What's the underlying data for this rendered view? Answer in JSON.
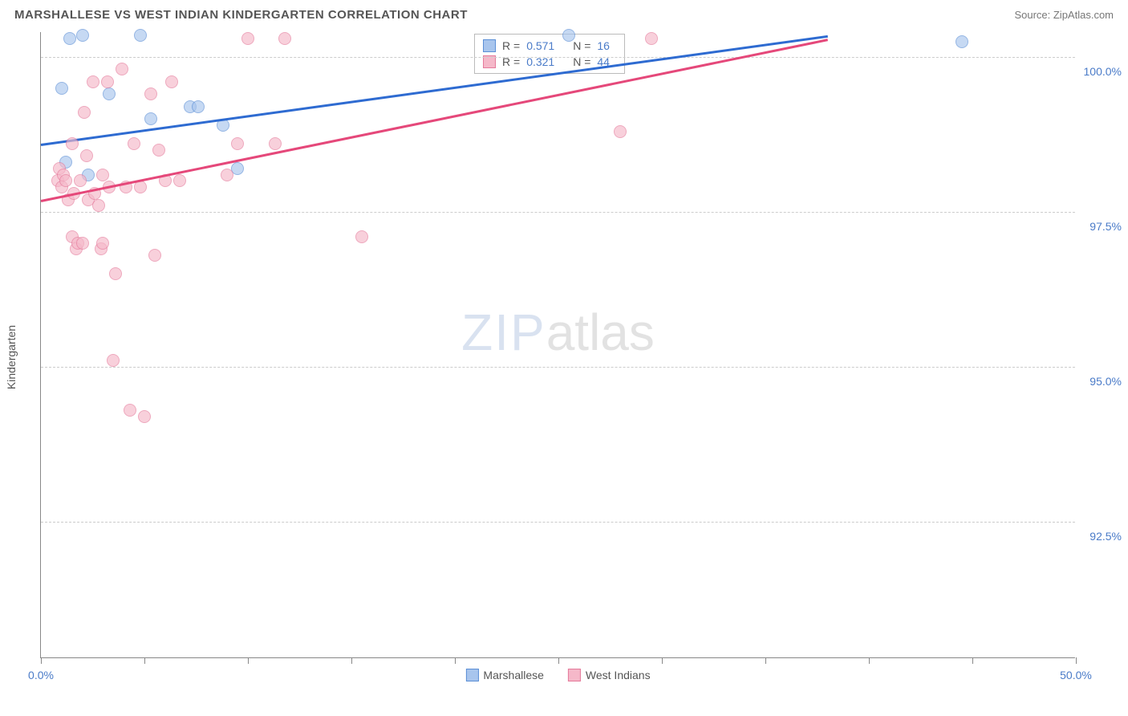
{
  "header": {
    "title": "MARSHALLESE VS WEST INDIAN KINDERGARTENCORRELATION CHART",
    "title_fixed": "MARSHALLESE VS WEST INDIAN KINDERGARTEN CORRELATION CHART",
    "source": "Source: ZipAtlas.com"
  },
  "chart": {
    "type": "scatter",
    "ylabel": "Kindergarten",
    "xlim": [
      0,
      50
    ],
    "ylim": [
      90.3,
      100.4
    ],
    "x_ticks": [
      0,
      5,
      10,
      15,
      20,
      25,
      30,
      35,
      40,
      45,
      50
    ],
    "x_tick_labels": {
      "0": "0.0%",
      "50": "50.0%"
    },
    "y_grid": [
      92.5,
      95.0,
      97.5,
      100.0
    ],
    "y_tick_labels": [
      "92.5%",
      "95.0%",
      "97.5%",
      "100.0%"
    ],
    "background_color": "#ffffff",
    "grid_color": "#cccccc",
    "axis_color": "#888888",
    "tick_label_color": "#4a7bc8",
    "marker_radius": 8,
    "marker_opacity": 0.65,
    "watermark": {
      "part1": "ZIP",
      "part2": "atlas"
    },
    "series": [
      {
        "name": "Marshallese",
        "fill_color": "#a8c5ed",
        "stroke_color": "#5b8fd6",
        "line_color": "#2e6bd1",
        "R": "0.571",
        "N": "16",
        "trend": {
          "x1": 0,
          "y1": 98.6,
          "x2": 38,
          "y2": 100.35
        },
        "points": [
          [
            1.0,
            99.5
          ],
          [
            1.2,
            98.3
          ],
          [
            1.4,
            100.3
          ],
          [
            2.0,
            100.35
          ],
          [
            2.3,
            98.1
          ],
          [
            3.3,
            99.4
          ],
          [
            4.8,
            100.35
          ],
          [
            5.3,
            99.0
          ],
          [
            7.2,
            99.2
          ],
          [
            7.6,
            99.2
          ],
          [
            8.8,
            98.9
          ],
          [
            9.5,
            98.2
          ],
          [
            25.5,
            100.35
          ],
          [
            44.5,
            100.25
          ]
        ]
      },
      {
        "name": "West Indians",
        "fill_color": "#f5b8c9",
        "stroke_color": "#e57a9b",
        "line_color": "#e5487a",
        "R": "0.321",
        "N": "44",
        "trend": {
          "x1": 0,
          "y1": 97.7,
          "x2": 38,
          "y2": 100.3
        },
        "points": [
          [
            0.8,
            98.0
          ],
          [
            0.9,
            98.2
          ],
          [
            1.0,
            97.9
          ],
          [
            1.1,
            98.1
          ],
          [
            1.2,
            98.0
          ],
          [
            1.3,
            97.7
          ],
          [
            1.5,
            98.6
          ],
          [
            1.5,
            97.1
          ],
          [
            1.6,
            97.8
          ],
          [
            1.7,
            96.9
          ],
          [
            1.8,
            97.0
          ],
          [
            1.9,
            98.0
          ],
          [
            2.0,
            97.0
          ],
          [
            2.1,
            99.1
          ],
          [
            2.2,
            98.4
          ],
          [
            2.3,
            97.7
          ],
          [
            2.5,
            99.6
          ],
          [
            2.6,
            97.8
          ],
          [
            2.8,
            97.6
          ],
          [
            2.9,
            96.9
          ],
          [
            3.0,
            98.1
          ],
          [
            3.0,
            97.0
          ],
          [
            3.2,
            99.6
          ],
          [
            3.3,
            97.9
          ],
          [
            3.5,
            95.1
          ],
          [
            3.6,
            96.5
          ],
          [
            3.9,
            99.8
          ],
          [
            4.1,
            97.9
          ],
          [
            4.3,
            94.3
          ],
          [
            4.5,
            98.6
          ],
          [
            4.8,
            97.9
          ],
          [
            5.0,
            94.2
          ],
          [
            5.3,
            99.4
          ],
          [
            5.5,
            96.8
          ],
          [
            5.7,
            98.5
          ],
          [
            6.0,
            98.0
          ],
          [
            6.3,
            99.6
          ],
          [
            6.7,
            98.0
          ],
          [
            9.0,
            98.1
          ],
          [
            9.5,
            98.6
          ],
          [
            10.0,
            100.3
          ],
          [
            11.3,
            98.6
          ],
          [
            11.8,
            100.3
          ],
          [
            15.5,
            97.1
          ],
          [
            28.0,
            98.8
          ],
          [
            29.5,
            100.3
          ]
        ]
      }
    ],
    "legend": [
      {
        "label": "Marshallese",
        "fill": "#a8c5ed",
        "stroke": "#5b8fd6"
      },
      {
        "label": "West Indians",
        "fill": "#f5b8c9",
        "stroke": "#e57a9b"
      }
    ]
  }
}
